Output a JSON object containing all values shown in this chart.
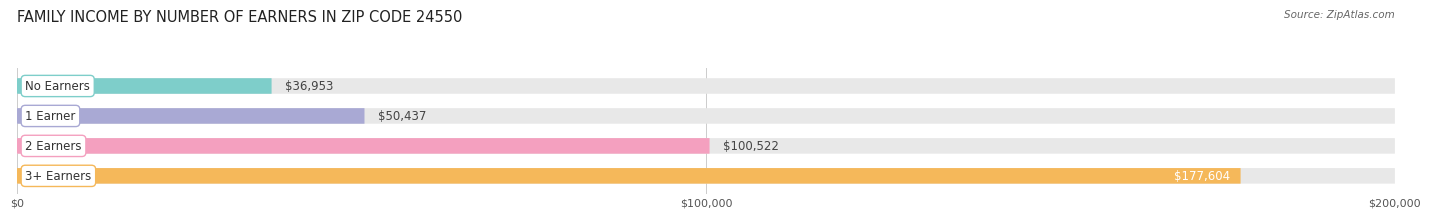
{
  "title": "FAMILY INCOME BY NUMBER OF EARNERS IN ZIP CODE 24550",
  "source": "Source: ZipAtlas.com",
  "categories": [
    "No Earners",
    "1 Earner",
    "2 Earners",
    "3+ Earners"
  ],
  "values": [
    36953,
    50437,
    100522,
    177604
  ],
  "bar_colors": [
    "#7ececa",
    "#a9a9d4",
    "#f4a0bf",
    "#f5b85a"
  ],
  "label_colors": [
    "#444444",
    "#444444",
    "#444444",
    "#ffffff"
  ],
  "value_labels": [
    "$36,953",
    "$50,437",
    "$100,522",
    "$177,604"
  ],
  "bar_bg_color": "#e8e8e8",
  "xlim": [
    0,
    200000
  ],
  "xticks": [
    0,
    100000,
    200000
  ],
  "xtick_labels": [
    "$0",
    "$100,000",
    "$200,000"
  ],
  "background_color": "#ffffff",
  "title_fontsize": 10.5,
  "source_fontsize": 7.5,
  "label_fontsize": 8.5,
  "value_fontsize": 8.5,
  "bar_height": 0.52
}
